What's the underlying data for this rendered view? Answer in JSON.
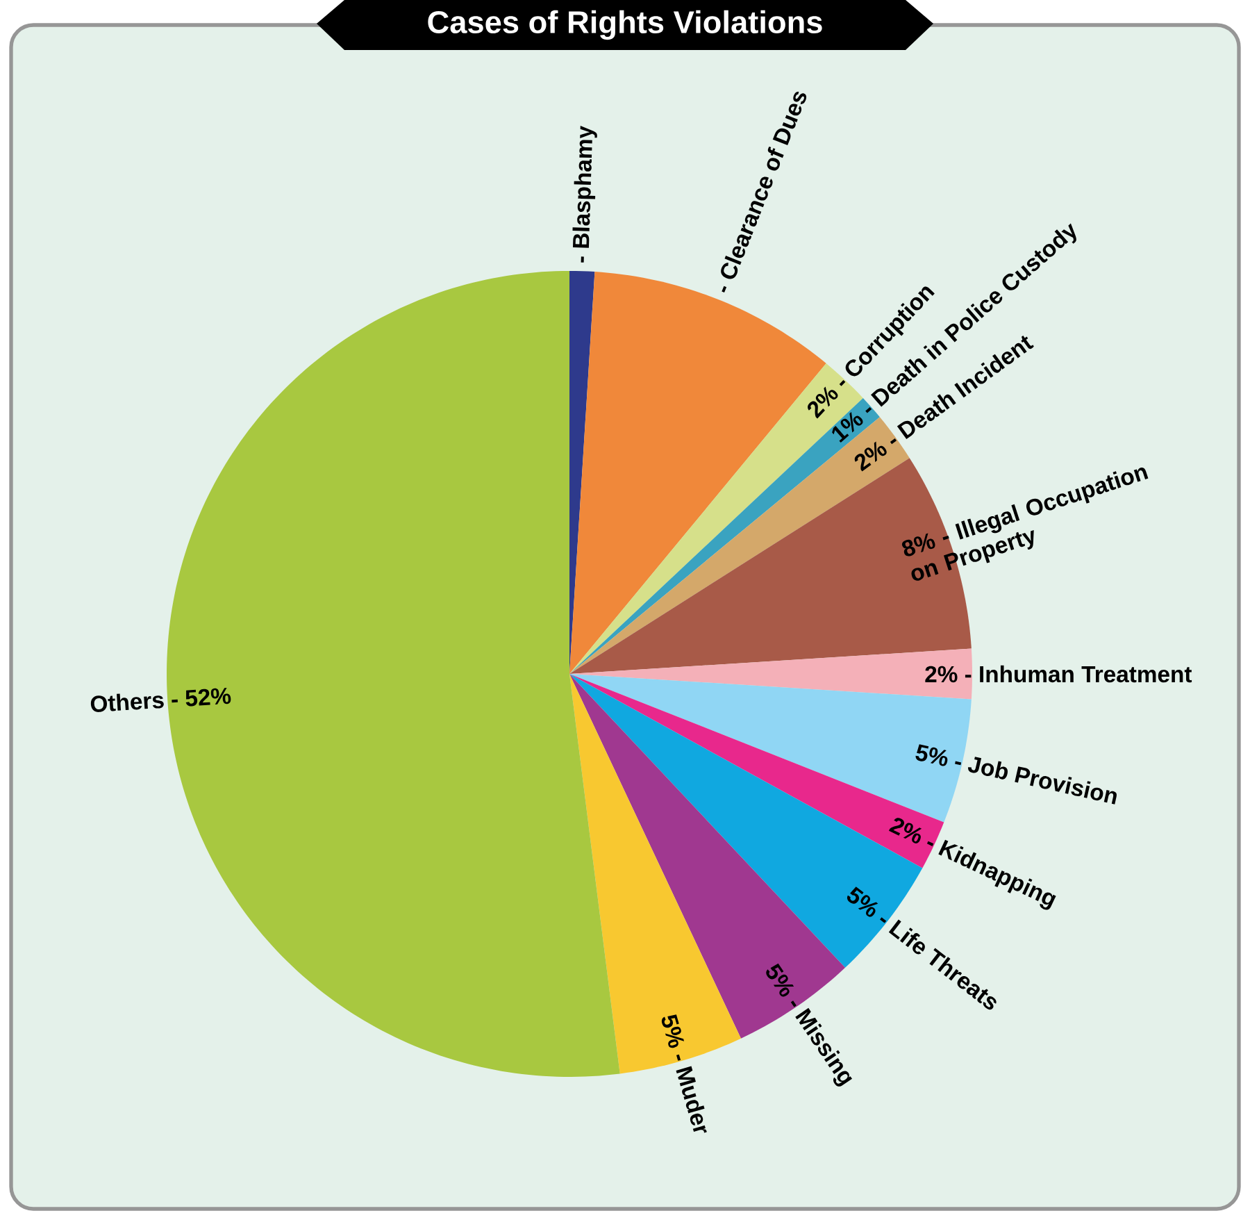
{
  "chart_data": {
    "type": "pie",
    "title": "Cases of Rights Violations",
    "categories": [
      "- Blasphamy",
      "- Clearance of Dues",
      "- Corruption",
      "- Death in Police Custody",
      "- Death Incident",
      "- Illegal Occupation on Property",
      "- Inhuman Treatment",
      "- Job Provision",
      "- Kidnapping",
      "- Life Threats",
      "- Missing",
      "- Muder",
      "Others -"
    ],
    "values": [
      1,
      10,
      2,
      1,
      2,
      8,
      2,
      5,
      2,
      5,
      5,
      5,
      52
    ],
    "value_labels": [
      null,
      null,
      "2%",
      "1%",
      "2%",
      "8%",
      "2%",
      "5%",
      "2%",
      "5%",
      "5%",
      "5%",
      "52%"
    ],
    "colors": [
      "#2e3a8c",
      "#f0883a",
      "#d6e08a",
      "#3aa3c0",
      "#d4a86a",
      "#a85a48",
      "#f4b0b8",
      "#90d6f4",
      "#e8288c",
      "#10a8e0",
      "#a03890",
      "#f8c830",
      "#a8c840"
    ]
  }
}
